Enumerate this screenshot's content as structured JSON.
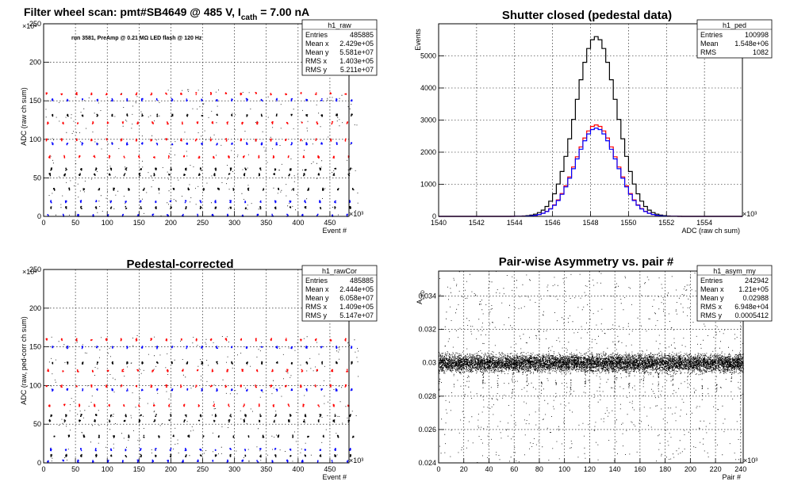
{
  "header": {
    "title_part1": "Filter wheel scan: pmt#SB4649 @   485 V, I",
    "title_sub": "cath",
    "title_part2": " = 7.00 nA"
  },
  "colors": {
    "red": "#ff0000",
    "blue": "#0000ff",
    "black": "#000000"
  },
  "chart_data": [
    {
      "id": "raw",
      "type": "scatter",
      "title": "",
      "note": "run 3581, PreAmp @ 0.21 MΩ  LED flash @  120 Hz",
      "xlabel": "Event #",
      "ylabel": "ADC (raw ch sum)",
      "x_exponent": "×10³",
      "y_exponent": "×10⁶",
      "xlim": [
        0,
        480
      ],
      "ylim": [
        0,
        250
      ],
      "x_ticks": [
        0,
        50,
        100,
        150,
        200,
        250,
        300,
        350,
        400,
        450
      ],
      "y_ticks": [
        0,
        50,
        100,
        150,
        200,
        250
      ],
      "grid": true,
      "stats": {
        "name": "h1_raw",
        "rows": [
          [
            "Entries",
            "485885"
          ],
          [
            "Mean x",
            "2.429e+05"
          ],
          [
            "Mean y",
            "5.581e+07"
          ],
          [
            "RMS x",
            "1.403e+05"
          ],
          [
            "RMS y",
            "5.211e+07"
          ]
        ]
      },
      "levels": [
        2,
        12,
        20,
        36,
        55,
        62,
        78,
        95,
        100,
        122,
        132,
        152,
        160
      ],
      "cycle_period": 23.5,
      "red_levels": [
        100,
        160,
        122,
        78
      ],
      "blue_levels": [
        95,
        152,
        2,
        20
      ],
      "seed": 11
    },
    {
      "id": "ped",
      "type": "histogram",
      "title": "Shutter closed (pedestal data)",
      "xlabel": "ADC (raw ch sum)",
      "ylabel": "Events",
      "x_exponent": "×10³",
      "xlim": [
        1540,
        1556
      ],
      "ylim": [
        0,
        6000
      ],
      "x_ticks": [
        1540,
        1542,
        1544,
        1546,
        1548,
        1550,
        1552,
        1554
      ],
      "y_ticks": [
        0,
        1000,
        2000,
        3000,
        4000,
        5000
      ],
      "grid": true,
      "stats": {
        "name": "h1_ped",
        "rows": [
          [
            "Entries",
            "100998"
          ],
          [
            "Mean",
            "1.548e+06"
          ],
          [
            "RMS",
            "1082"
          ]
        ]
      },
      "series": [
        {
          "name": "",
          "color": "black",
          "mean": 1548.3,
          "sigma": 1.08,
          "peak": 5600
        },
        {
          "name": "",
          "color": "red",
          "mean": 1548.3,
          "sigma": 1.08,
          "peak": 2850
        },
        {
          "name": "",
          "color": "blue",
          "mean": 1548.3,
          "sigma": 1.08,
          "peak": 2750
        }
      ],
      "bin_width": 0.2
    },
    {
      "id": "cor",
      "type": "scatter",
      "title": "Pedestal-corrected",
      "xlabel": "Event #",
      "ylabel": "ADC (raw, ped-corr ch sum)",
      "x_exponent": "×10³",
      "y_exponent": "×10⁶",
      "xlim": [
        0,
        480
      ],
      "ylim": [
        0,
        250
      ],
      "x_ticks": [
        0,
        50,
        100,
        150,
        200,
        250,
        300,
        350,
        400,
        450
      ],
      "y_ticks": [
        0,
        50,
        100,
        150,
        200,
        250
      ],
      "grid": true,
      "stats": {
        "name": "h1_rawCor",
        "rows": [
          [
            "Entries",
            "485885"
          ],
          [
            "Mean x",
            "2.444e+05"
          ],
          [
            "Mean y",
            "6.058e+07"
          ],
          [
            "RMS x",
            "1.409e+05"
          ],
          [
            "RMS y",
            "5.147e+07"
          ]
        ]
      },
      "levels": [
        3,
        10,
        18,
        35,
        55,
        62,
        75,
        95,
        100,
        120,
        130,
        150,
        160
      ],
      "cycle_period": 23.5,
      "red_levels": [
        100,
        160,
        120,
        75
      ],
      "blue_levels": [
        95,
        150,
        3,
        18
      ],
      "seed": 23
    },
    {
      "id": "asym",
      "type": "scatter",
      "title": "Pair-wise Asymmetry vs. pair #",
      "xlabel": "Pair #",
      "ylabel": "A",
      "ylabel_sub": "LED",
      "x_exponent": "×10³",
      "xlim": [
        0,
        242
      ],
      "ylim": [
        0.024,
        0.0355
      ],
      "x_ticks": [
        0,
        20,
        40,
        60,
        80,
        100,
        120,
        140,
        160,
        180,
        200,
        220,
        240
      ],
      "y_ticks": [
        0.024,
        0.026,
        0.028,
        0.03,
        0.032,
        0.034
      ],
      "grid": true,
      "stats": {
        "name": "h1_asym_my",
        "rows": [
          [
            "Entries",
            "242942"
          ],
          [
            "Mean x",
            "1.21e+05"
          ],
          [
            "Mean y",
            "0.02988"
          ],
          [
            "RMS x",
            "6.948e+04"
          ],
          [
            "RMS y",
            "0.0005412"
          ]
        ]
      },
      "band_center": 0.03,
      "band_halfwidth": 0.0005,
      "dip_period": 11.6,
      "seed": 37
    }
  ]
}
